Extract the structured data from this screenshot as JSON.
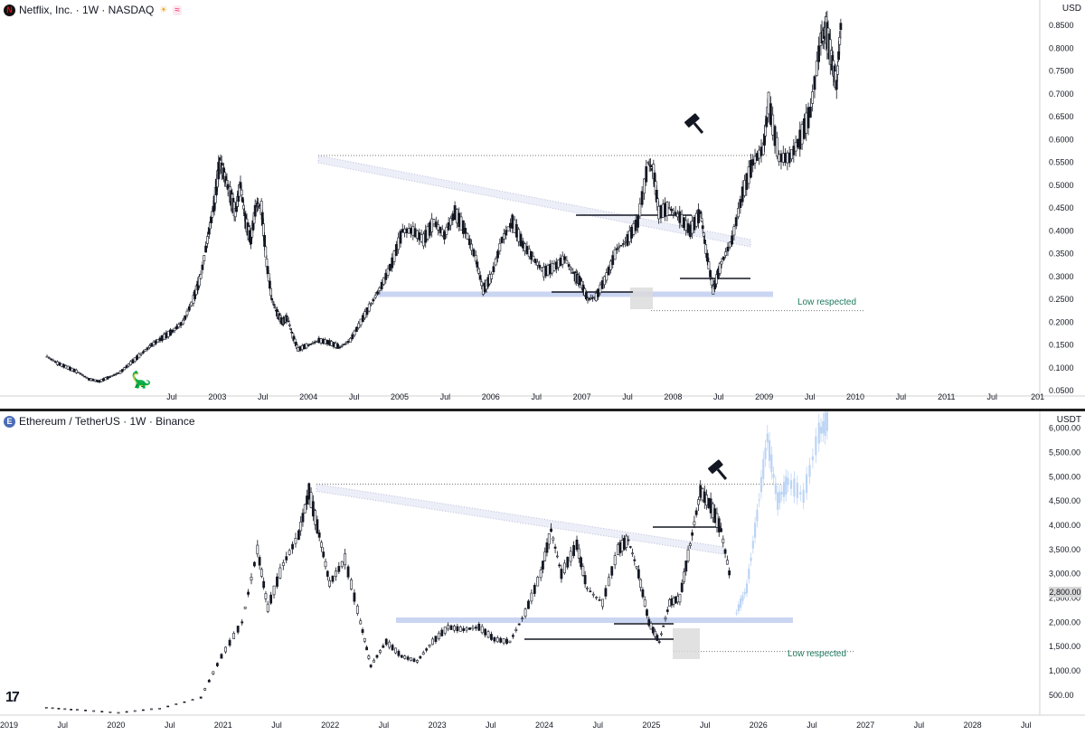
{
  "top": {
    "legend": "Netflix, Inc. · 1W · NASDAQ",
    "logo": "N",
    "badge_sun": "☀",
    "badge_wave": "≈",
    "currency": "USD",
    "annotation": "Low respected",
    "gavel_icon": "gavel-icon",
    "colors": {
      "zone": "#c7d3f1",
      "line": "#131722",
      "box": "#d9d9d9"
    }
  },
  "bottom": {
    "legend": "Ethereum / TetherUS · 1W · Binance",
    "logo": "E",
    "currency": "USDT",
    "annotation": "Low respected",
    "price_label": "2,800.00",
    "gavel_icon": "gavel-icon",
    "colors": {
      "zone": "#c7d3f1",
      "projection": "#bcd4f5",
      "line": "#131722",
      "box": "#d9d9d9"
    }
  },
  "tv_logo": "17",
  "chart_data": [
    {
      "type": "candlestick",
      "symbol": "Netflix, Inc.",
      "interval": "1W",
      "exchange": "NASDAQ",
      "currency": "USD",
      "y_ticks": [
        "0.8500",
        "0.8000",
        "0.7500",
        "0.7000",
        "0.6500",
        "0.6000",
        "0.5500",
        "0.5000",
        "0.4500",
        "0.4000",
        "0.3500",
        "0.3000",
        "0.2500",
        "0.2000",
        "0.1500",
        "0.1000",
        "0.0500"
      ],
      "y_range": [
        0.05,
        0.89
      ],
      "x_ticks": [
        "Jul",
        "2003",
        "Jul",
        "2004",
        "Jul",
        "2005",
        "Jul",
        "2006",
        "Jul",
        "2007",
        "Jul",
        "2008",
        "Jul",
        "2009",
        "Jul",
        "2010",
        "Jul",
        "2011",
        "Jul",
        "201"
      ],
      "series": [
        {
          "t": 2002.45,
          "v": 0.125
        },
        {
          "t": 2002.55,
          "v": 0.11
        },
        {
          "t": 2002.65,
          "v": 0.1
        },
        {
          "t": 2002.75,
          "v": 0.09
        },
        {
          "t": 2002.85,
          "v": 0.075
        },
        {
          "t": 2002.95,
          "v": 0.07
        },
        {
          "t": 2003.05,
          "v": 0.08
        },
        {
          "t": 2003.15,
          "v": 0.09
        },
        {
          "t": 2003.25,
          "v": 0.11
        },
        {
          "t": 2003.35,
          "v": 0.13
        },
        {
          "t": 2003.45,
          "v": 0.15
        },
        {
          "t": 2003.55,
          "v": 0.165
        },
        {
          "t": 2003.65,
          "v": 0.18
        },
        {
          "t": 2003.75,
          "v": 0.2
        },
        {
          "t": 2003.85,
          "v": 0.25
        },
        {
          "t": 2003.92,
          "v": 0.3
        },
        {
          "t": 2004.0,
          "v": 0.4
        },
        {
          "t": 2004.05,
          "v": 0.46
        },
        {
          "t": 2004.1,
          "v": 0.55
        },
        {
          "t": 2004.15,
          "v": 0.52
        },
        {
          "t": 2004.2,
          "v": 0.48
        },
        {
          "t": 2004.25,
          "v": 0.44
        },
        {
          "t": 2004.3,
          "v": 0.5
        },
        {
          "t": 2004.35,
          "v": 0.42
        },
        {
          "t": 2004.4,
          "v": 0.38
        },
        {
          "t": 2004.45,
          "v": 0.46
        },
        {
          "t": 2004.5,
          "v": 0.45
        },
        {
          "t": 2004.55,
          "v": 0.33
        },
        {
          "t": 2004.6,
          "v": 0.25
        },
        {
          "t": 2004.65,
          "v": 0.22
        },
        {
          "t": 2004.7,
          "v": 0.2
        },
        {
          "t": 2004.75,
          "v": 0.21
        },
        {
          "t": 2004.8,
          "v": 0.17
        },
        {
          "t": 2004.85,
          "v": 0.14
        },
        {
          "t": 2004.95,
          "v": 0.15
        },
        {
          "t": 2005.05,
          "v": 0.16
        },
        {
          "t": 2005.15,
          "v": 0.155
        },
        {
          "t": 2005.25,
          "v": 0.145
        },
        {
          "t": 2005.35,
          "v": 0.16
        },
        {
          "t": 2005.45,
          "v": 0.2
        },
        {
          "t": 2005.55,
          "v": 0.24
        },
        {
          "t": 2005.65,
          "v": 0.28
        },
        {
          "t": 2005.75,
          "v": 0.33
        },
        {
          "t": 2005.85,
          "v": 0.4
        },
        {
          "t": 2005.95,
          "v": 0.4
        },
        {
          "t": 2006.05,
          "v": 0.38
        },
        {
          "t": 2006.15,
          "v": 0.42
        },
        {
          "t": 2006.25,
          "v": 0.39
        },
        {
          "t": 2006.35,
          "v": 0.44
        },
        {
          "t": 2006.45,
          "v": 0.4
        },
        {
          "t": 2006.55,
          "v": 0.34
        },
        {
          "t": 2006.62,
          "v": 0.27
        },
        {
          "t": 2006.7,
          "v": 0.3
        },
        {
          "t": 2006.8,
          "v": 0.38
        },
        {
          "t": 2006.9,
          "v": 0.42
        },
        {
          "t": 2007.0,
          "v": 0.37
        },
        {
          "t": 2007.1,
          "v": 0.34
        },
        {
          "t": 2007.2,
          "v": 0.31
        },
        {
          "t": 2007.3,
          "v": 0.32
        },
        {
          "t": 2007.4,
          "v": 0.34
        },
        {
          "t": 2007.5,
          "v": 0.3
        },
        {
          "t": 2007.55,
          "v": 0.29
        },
        {
          "t": 2007.62,
          "v": 0.25
        },
        {
          "t": 2007.7,
          "v": 0.255
        },
        {
          "t": 2007.8,
          "v": 0.3
        },
        {
          "t": 2007.9,
          "v": 0.36
        },
        {
          "t": 2008.0,
          "v": 0.38
        },
        {
          "t": 2008.1,
          "v": 0.42
        },
        {
          "t": 2008.2,
          "v": 0.55
        },
        {
          "t": 2008.25,
          "v": 0.53
        },
        {
          "t": 2008.3,
          "v": 0.44
        },
        {
          "t": 2008.4,
          "v": 0.45
        },
        {
          "t": 2008.5,
          "v": 0.43
        },
        {
          "t": 2008.6,
          "v": 0.4
        },
        {
          "t": 2008.7,
          "v": 0.44
        },
        {
          "t": 2008.75,
          "v": 0.36
        },
        {
          "t": 2008.82,
          "v": 0.27
        },
        {
          "t": 2008.9,
          "v": 0.33
        },
        {
          "t": 2009.0,
          "v": 0.38
        },
        {
          "t": 2009.1,
          "v": 0.48
        },
        {
          "t": 2009.2,
          "v": 0.55
        },
        {
          "t": 2009.3,
          "v": 0.58
        },
        {
          "t": 2009.35,
          "v": 0.68
        },
        {
          "t": 2009.45,
          "v": 0.56
        },
        {
          "t": 2009.55,
          "v": 0.56
        },
        {
          "t": 2009.65,
          "v": 0.6
        },
        {
          "t": 2009.75,
          "v": 0.66
        },
        {
          "t": 2009.85,
          "v": 0.82
        },
        {
          "t": 2009.9,
          "v": 0.84
        },
        {
          "t": 2009.95,
          "v": 0.78
        },
        {
          "t": 2010.0,
          "v": 0.72
        },
        {
          "t": 2010.05,
          "v": 0.88
        }
      ],
      "annotations": {
        "zone": [
          0.257,
          0.267
        ],
        "trend_high": 0.565,
        "low_line": 0.225,
        "label": "Low respected"
      }
    },
    {
      "type": "candlestick",
      "symbol": "Ethereum / TetherUS",
      "interval": "1W",
      "exchange": "Binance",
      "currency": "USDT",
      "y_ticks": [
        "6,000.00",
        "5,500.00",
        "5,000.00",
        "4,500.00",
        "4,000.00",
        "3,500.00",
        "3,000.00",
        "2,500.00",
        "2,000.00",
        "1,500.00",
        "1,000.00",
        "500.00"
      ],
      "y_range": [
        200,
        6200
      ],
      "x_ticks": [
        "2019",
        "Jul",
        "2020",
        "Jul",
        "2021",
        "Jul",
        "2022",
        "Jul",
        "2023",
        "Jul",
        "2024",
        "Jul",
        "2025",
        "Jul",
        "2026",
        "Jul",
        "2027",
        "Jul",
        "2028",
        "Jul"
      ],
      "last_price": "2,800.00",
      "series": [
        {
          "t": 2019.3,
          "v": 250
        },
        {
          "t": 2019.6,
          "v": 200
        },
        {
          "t": 2020.0,
          "v": 140
        },
        {
          "t": 2020.4,
          "v": 230
        },
        {
          "t": 2020.8,
          "v": 450
        },
        {
          "t": 2021.0,
          "v": 1300
        },
        {
          "t": 2021.2,
          "v": 2000
        },
        {
          "t": 2021.35,
          "v": 3500
        },
        {
          "t": 2021.45,
          "v": 2300
        },
        {
          "t": 2021.6,
          "v": 3200
        },
        {
          "t": 2021.75,
          "v": 3800
        },
        {
          "t": 2021.85,
          "v": 4700
        },
        {
          "t": 2021.95,
          "v": 3800
        },
        {
          "t": 2022.05,
          "v": 2800
        },
        {
          "t": 2022.2,
          "v": 3300
        },
        {
          "t": 2022.35,
          "v": 2000
        },
        {
          "t": 2022.45,
          "v": 1100
        },
        {
          "t": 2022.6,
          "v": 1600
        },
        {
          "t": 2022.75,
          "v": 1300
        },
        {
          "t": 2022.9,
          "v": 1200
        },
        {
          "t": 2023.05,
          "v": 1600
        },
        {
          "t": 2023.2,
          "v": 1900
        },
        {
          "t": 2023.35,
          "v": 1850
        },
        {
          "t": 2023.5,
          "v": 1900
        },
        {
          "t": 2023.65,
          "v": 1650
        },
        {
          "t": 2023.8,
          "v": 1600
        },
        {
          "t": 2023.95,
          "v": 2200
        },
        {
          "t": 2024.1,
          "v": 3000
        },
        {
          "t": 2024.2,
          "v": 3900
        },
        {
          "t": 2024.3,
          "v": 3000
        },
        {
          "t": 2024.45,
          "v": 3600
        },
        {
          "t": 2024.55,
          "v": 2700
        },
        {
          "t": 2024.7,
          "v": 2400
        },
        {
          "t": 2024.85,
          "v": 3500
        },
        {
          "t": 2024.95,
          "v": 3700
        },
        {
          "t": 2025.05,
          "v": 3000
        },
        {
          "t": 2025.15,
          "v": 2000
        },
        {
          "t": 2025.25,
          "v": 1600
        },
        {
          "t": 2025.35,
          "v": 2400
        },
        {
          "t": 2025.45,
          "v": 2500
        },
        {
          "t": 2025.55,
          "v": 3600
        },
        {
          "t": 2025.65,
          "v": 4700
        },
        {
          "t": 2025.75,
          "v": 4400
        },
        {
          "t": 2025.85,
          "v": 3900
        },
        {
          "t": 2025.95,
          "v": 2800
        }
      ],
      "projection": [
        {
          "t": 2026.0,
          "v": 2200
        },
        {
          "t": 2026.1,
          "v": 2700
        },
        {
          "t": 2026.2,
          "v": 4200
        },
        {
          "t": 2026.3,
          "v": 5800
        },
        {
          "t": 2026.4,
          "v": 4500
        },
        {
          "t": 2026.5,
          "v": 4900
        },
        {
          "t": 2026.65,
          "v": 4600
        },
        {
          "t": 2026.8,
          "v": 5900
        },
        {
          "t": 2026.9,
          "v": 6200
        }
      ],
      "annotations": {
        "zone": [
          2000,
          2100
        ],
        "trend_high": 4850,
        "low_line": 1400,
        "label": "Low respected"
      }
    }
  ]
}
